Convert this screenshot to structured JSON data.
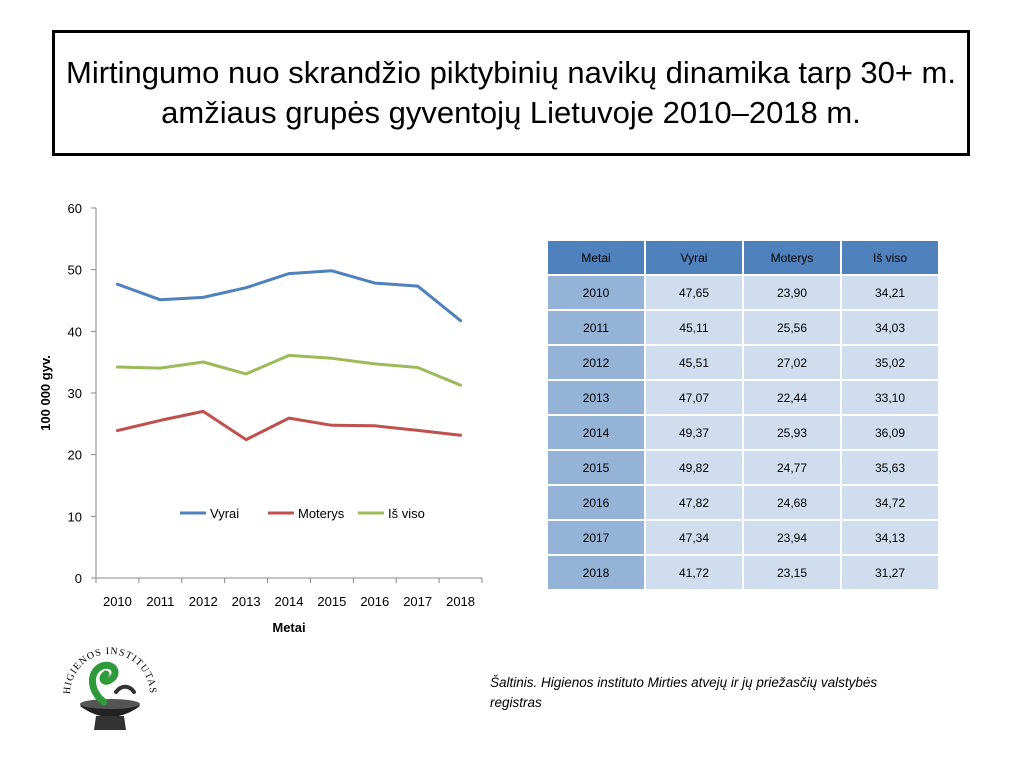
{
  "page": {
    "title": "Mirtingumo  nuo skrandžio piktybinių navikų dinamika tarp 30+ m. amžiaus grupės gyventojų Lietuvoje 2010–2018 m.",
    "source_note": "Šaltinis. Higienos instituto  Mirties atvejų ir jų priežasčių valstybės registras",
    "logo_text": "HIGIENOS INSTITUTAS"
  },
  "chart_data": {
    "type": "line",
    "title": "",
    "xlabel": "Metai",
    "ylabel": "100 000 gyv.",
    "categories": [
      "2010",
      "2011",
      "2012",
      "2013",
      "2014",
      "2015",
      "2016",
      "2017",
      "2018"
    ],
    "ylim": [
      0,
      60
    ],
    "yticks": [
      "0",
      "10",
      "20",
      "30",
      "40",
      "50",
      "60"
    ],
    "grid": false,
    "legend_position": "inside-bottom",
    "series": [
      {
        "name": "Vyrai",
        "color": "#4f81bd",
        "values": [
          47.65,
          45.11,
          45.51,
          47.07,
          49.37,
          49.82,
          47.82,
          47.34,
          41.72
        ]
      },
      {
        "name": "Moterys",
        "color": "#c0504d",
        "values": [
          23.9,
          25.56,
          27.02,
          22.44,
          25.93,
          24.77,
          24.68,
          23.94,
          23.15
        ]
      },
      {
        "name": "Iš viso",
        "color": "#9bbb59",
        "values": [
          34.21,
          34.03,
          35.02,
          33.1,
          36.09,
          35.63,
          34.72,
          34.13,
          31.27
        ]
      }
    ]
  },
  "table": {
    "headers": [
      "Metai",
      "Vyrai",
      "Moterys",
      "Iš viso"
    ],
    "rows": [
      [
        "2010",
        "47,65",
        "23,90",
        "34,21"
      ],
      [
        "2011",
        "45,11",
        "25,56",
        "34,03"
      ],
      [
        "2012",
        "45,51",
        "27,02",
        "35,02"
      ],
      [
        "2013",
        "47,07",
        "22,44",
        "33,10"
      ],
      [
        "2014",
        "49,37",
        "25,93",
        "36,09"
      ],
      [
        "2015",
        "49,82",
        "24,77",
        "35,63"
      ],
      [
        "2016",
        "47,82",
        "24,68",
        "34,72"
      ],
      [
        "2017",
        "47,34",
        "23,94",
        "34,13"
      ],
      [
        "2018",
        "41,72",
        "23,15",
        "31,27"
      ]
    ]
  },
  "colors": {
    "table_header": "#4f81bd",
    "table_year_col": "#95b3d7",
    "table_cell": "#d0ddef"
  }
}
